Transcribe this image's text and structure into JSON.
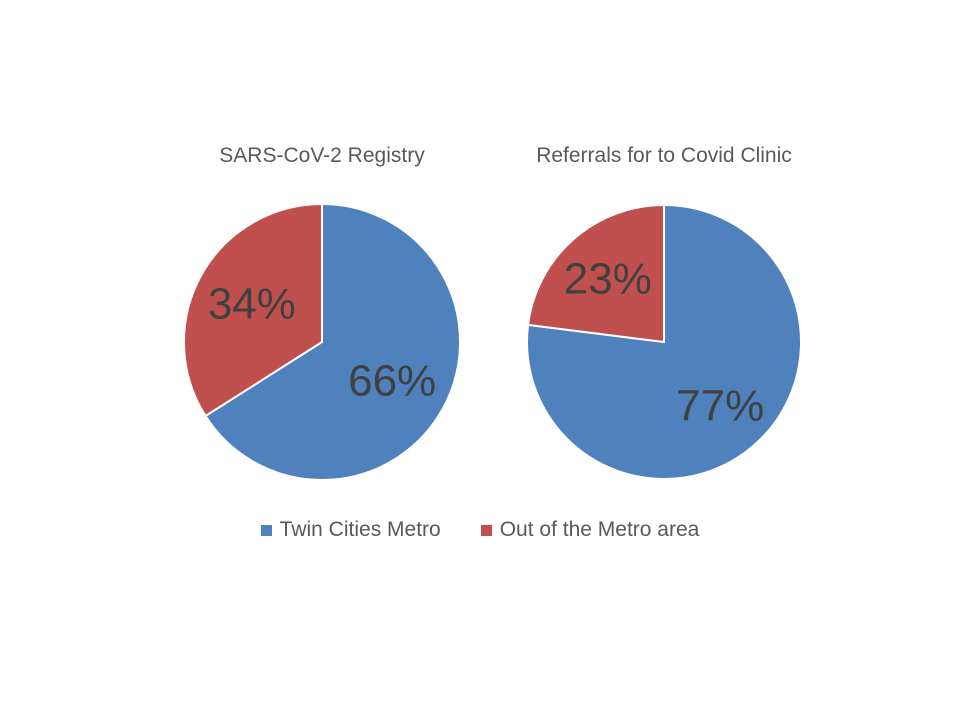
{
  "colors": {
    "series_a": "#4F81BD",
    "series_b": "#C0504D",
    "slice_border": "#ffffff"
  },
  "legend": [
    {
      "label": "Twin Cities Metro",
      "color": "#4F81BD"
    },
    {
      "label": "Out of the Metro area",
      "color": "#C0504D"
    }
  ],
  "chart_data": [
    {
      "type": "pie",
      "title": "SARS-CoV-2 Registry",
      "categories": [
        "Twin Cities Metro",
        "Out of the Metro area"
      ],
      "values": [
        66,
        34
      ],
      "labels": [
        "66%",
        "34%"
      ],
      "colors": [
        "#4F81BD",
        "#C0504D"
      ],
      "start": "12 o'clock",
      "direction": "clockwise",
      "legend": "bottom"
    },
    {
      "type": "pie",
      "title": "Referrals for to Covid Clinic",
      "categories": [
        "Twin Cities Metro",
        "Out of the Metro area"
      ],
      "values": [
        77,
        23
      ],
      "labels": [
        "77%",
        "23%"
      ],
      "colors": [
        "#4F81BD",
        "#C0504D"
      ],
      "start": "12 o'clock",
      "direction": "clockwise",
      "legend": "bottom"
    }
  ]
}
